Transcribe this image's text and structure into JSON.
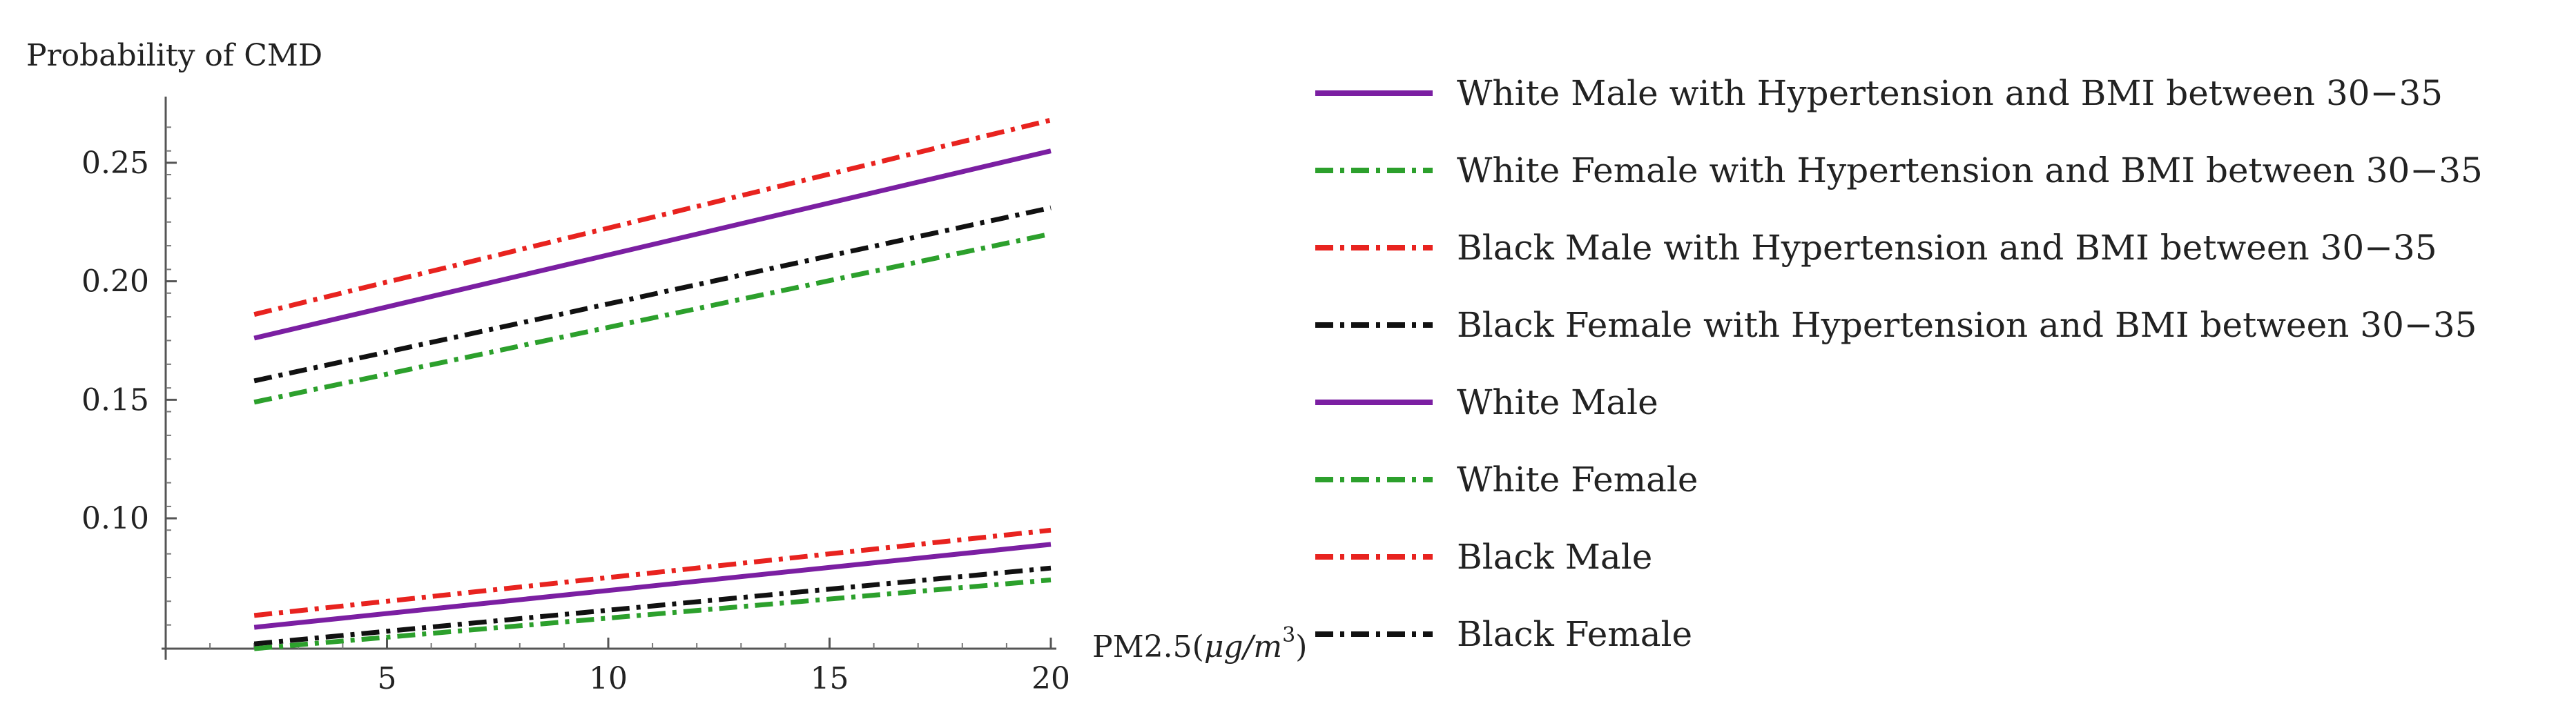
{
  "chart_data": {
    "type": "line",
    "ylabel": "Probability of CMD",
    "xlabel": "PM2.5(μg/m³)",
    "xlabel_parts": {
      "prefix": "PM2.5(",
      "mu": "μ",
      "g": "g",
      "slash_m": "/m",
      "exp": "3",
      "close": ")"
    },
    "xlim": [
      0,
      20
    ],
    "ylim": [
      0.045,
      0.275
    ],
    "x_axis_at_y": 0.045,
    "xticks": [
      5,
      10,
      15,
      20
    ],
    "yticks": [
      0.1,
      0.15,
      0.2,
      0.25
    ],
    "yticklabels": [
      "0.10",
      "0.15",
      "0.20",
      "0.25"
    ],
    "legend_position": "right",
    "series": [
      {
        "name": "White Male with Hypertension and BMI between 30−35",
        "color": "#7B1FA2",
        "style": "solid",
        "points": [
          [
            2,
            0.176
          ],
          [
            20,
            0.255
          ]
        ]
      },
      {
        "name": "White Female with Hypertension and BMI between 30−35",
        "color": "#2CA02C",
        "style": "dashdot",
        "points": [
          [
            2,
            0.149
          ],
          [
            20,
            0.22
          ]
        ]
      },
      {
        "name": "Black Male with Hypertension and BMI between 30−35",
        "color": "#E8231F",
        "style": "dashdot",
        "points": [
          [
            2,
            0.186
          ],
          [
            20,
            0.268
          ]
        ]
      },
      {
        "name": "Black Female with Hypertension and BMI between 30−35",
        "color": "#111111",
        "style": "dashdot",
        "points": [
          [
            2,
            0.158
          ],
          [
            20,
            0.231
          ]
        ]
      },
      {
        "name": "White Male",
        "color": "#7B1FA2",
        "style": "solid",
        "points": [
          [
            2,
            0.054
          ],
          [
            20,
            0.089
          ]
        ]
      },
      {
        "name": "White Female",
        "color": "#2CA02C",
        "style": "dashdot",
        "points": [
          [
            2,
            0.045
          ],
          [
            20,
            0.074
          ]
        ]
      },
      {
        "name": "Black Male",
        "color": "#E8231F",
        "style": "dashdot",
        "points": [
          [
            2,
            0.059
          ],
          [
            20,
            0.095
          ]
        ]
      },
      {
        "name": "Black Female",
        "color": "#111111",
        "style": "dashdot",
        "points": [
          [
            2,
            0.047
          ],
          [
            20,
            0.079
          ]
        ]
      }
    ]
  }
}
